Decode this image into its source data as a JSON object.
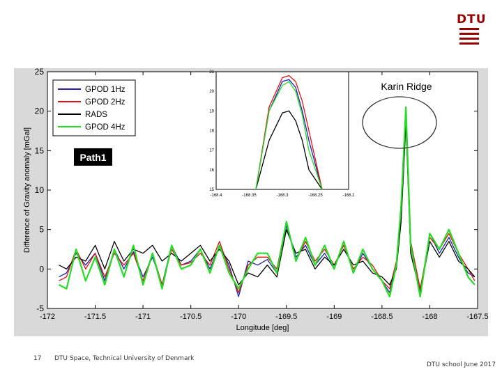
{
  "logo": {
    "text": "DTU"
  },
  "footer": {
    "page_number": "17",
    "organization": "DTU Space, Technical University of Denmark",
    "event": "DTU school June 2017"
  },
  "annotations": {
    "path_label": "Path1",
    "ridge_label": "Karin Ridge"
  },
  "colors": {
    "gpod1": "#1f1fb0",
    "gpod2": "#dd1111",
    "rads": "#000000",
    "gpod4": "#22dd22",
    "plot_bg": "#ffffff",
    "outer_bg": "#d9d9d9"
  },
  "chart_data": [
    {
      "type": "line",
      "xlabel": "Longitude [deg]",
      "ylabel": "Difference of Gravity anomaly [mGal]",
      "xlim": [
        -172,
        -167.5
      ],
      "ylim": [
        -5,
        25
      ],
      "xticks": [
        "-172",
        "-171.5",
        "-171",
        "-170.5",
        "-170",
        "-169.5",
        "-169",
        "-168.5",
        "-168",
        "-167.5"
      ],
      "yticks": [
        "-5",
        "0",
        "5",
        "10",
        "15",
        "20",
        "25"
      ],
      "legend": {
        "position": "top-left",
        "entries": [
          "GPOD 1Hz",
          "GPOD 2Hz",
          "RADS",
          "GPOD 4Hz"
        ]
      },
      "x": [
        -171.88,
        -171.8,
        -171.7,
        -171.6,
        -171.5,
        -171.4,
        -171.3,
        -171.2,
        -171.1,
        -171.0,
        -170.9,
        -170.8,
        -170.7,
        -170.6,
        -170.5,
        -170.4,
        -170.3,
        -170.2,
        -170.1,
        -170.0,
        -169.9,
        -169.8,
        -169.7,
        -169.6,
        -169.5,
        -169.4,
        -169.3,
        -169.2,
        -169.1,
        -169.0,
        -168.9,
        -168.8,
        -168.7,
        -168.6,
        -168.5,
        -168.42,
        -168.35,
        -168.3,
        -168.25,
        -168.2,
        -168.1,
        -168.0,
        -167.9,
        -167.8,
        -167.7,
        -167.6,
        -167.53
      ],
      "series": [
        {
          "name": "GPOD 1Hz",
          "values": [
            -1.0,
            -0.5,
            2.0,
            0.5,
            2.0,
            -1.5,
            2.5,
            0.0,
            2.2,
            -1.0,
            1.5,
            -2.0,
            3.0,
            0.5,
            1.0,
            2.5,
            0.0,
            3.0,
            0.5,
            -3.5,
            1.0,
            0.5,
            1.2,
            -0.5,
            5.5,
            1.5,
            3.0,
            0.5,
            2.0,
            0.0,
            3.5,
            -0.5,
            2.0,
            0.0,
            -1.5,
            -3.0,
            0.5,
            7.0,
            19.5,
            3.0,
            -3.0,
            4.5,
            2.0,
            4.0,
            1.5,
            -0.5,
            -1.0
          ]
        },
        {
          "name": "GPOD 2Hz",
          "values": [
            -1.5,
            -1.0,
            2.5,
            0.0,
            2.0,
            -1.0,
            2.0,
            0.5,
            2.0,
            -1.5,
            2.0,
            -2.0,
            2.5,
            0.5,
            0.8,
            2.0,
            0.5,
            3.5,
            0.0,
            -3.0,
            0.5,
            1.5,
            1.5,
            0.0,
            6.0,
            1.0,
            3.5,
            1.0,
            2.5,
            0.5,
            3.0,
            0.0,
            1.5,
            0.5,
            -1.5,
            -2.5,
            1.0,
            7.5,
            20.5,
            3.5,
            -2.5,
            4.0,
            2.5,
            4.5,
            2.0,
            0.0,
            -1.5
          ]
        },
        {
          "name": "RADS",
          "values": [
            0.5,
            0.0,
            1.5,
            1.0,
            3.0,
            0.0,
            3.5,
            1.0,
            2.5,
            2.0,
            3.0,
            1.0,
            2.0,
            1.0,
            2.0,
            3.0,
            1.0,
            2.5,
            1.0,
            -2.0,
            -0.5,
            -1.0,
            0.5,
            -1.0,
            5.0,
            2.0,
            2.5,
            0.0,
            1.5,
            0.5,
            2.5,
            0.5,
            1.0,
            -0.5,
            -1.0,
            -2.0,
            0.0,
            6.0,
            18.5,
            2.0,
            -3.0,
            3.5,
            1.5,
            3.5,
            1.0,
            0.0,
            -1.0
          ]
        },
        {
          "name": "GPOD 4Hz",
          "values": [
            -2.0,
            -2.5,
            2.5,
            -1.5,
            1.5,
            -2.0,
            2.5,
            -1.0,
            3.0,
            -2.0,
            2.0,
            -2.5,
            3.0,
            0.0,
            0.5,
            2.5,
            -0.5,
            3.0,
            -0.5,
            -2.5,
            0.0,
            2.0,
            2.0,
            -0.5,
            6.0,
            1.0,
            4.0,
            0.5,
            3.0,
            0.0,
            3.5,
            -0.5,
            2.5,
            0.0,
            -1.5,
            -3.5,
            0.5,
            8.0,
            20.5,
            3.0,
            -3.5,
            4.5,
            2.5,
            5.0,
            2.0,
            -1.0,
            -2.0
          ]
        }
      ]
    },
    {
      "type": "line",
      "title": "",
      "xlim": [
        -168.4,
        -168.2
      ],
      "ylim": [
        15,
        21
      ],
      "xticks": [
        "-168.4",
        "-168.35",
        "-168.3",
        "-168.25",
        "-168.2"
      ],
      "yticks": [
        "15",
        "16",
        "17",
        "18",
        "19",
        "20",
        "21"
      ],
      "x": [
        -168.34,
        -168.32,
        -168.3,
        -168.29,
        -168.28,
        -168.27,
        -168.26,
        -168.24
      ],
      "series": [
        {
          "name": "GPOD 1Hz",
          "values": [
            15.0,
            19.0,
            20.5,
            20.6,
            20.2,
            19.0,
            17.5,
            15.0
          ]
        },
        {
          "name": "GPOD 2Hz",
          "values": [
            15.0,
            19.2,
            20.7,
            20.8,
            20.5,
            19.5,
            18.0,
            15.0
          ]
        },
        {
          "name": "RADS",
          "values": [
            15.0,
            17.5,
            18.9,
            19.0,
            18.5,
            17.5,
            16.0,
            15.0
          ]
        },
        {
          "name": "GPOD 4Hz",
          "values": [
            15.0,
            19.0,
            20.3,
            20.5,
            20.0,
            18.8,
            17.0,
            15.0
          ]
        }
      ]
    }
  ]
}
